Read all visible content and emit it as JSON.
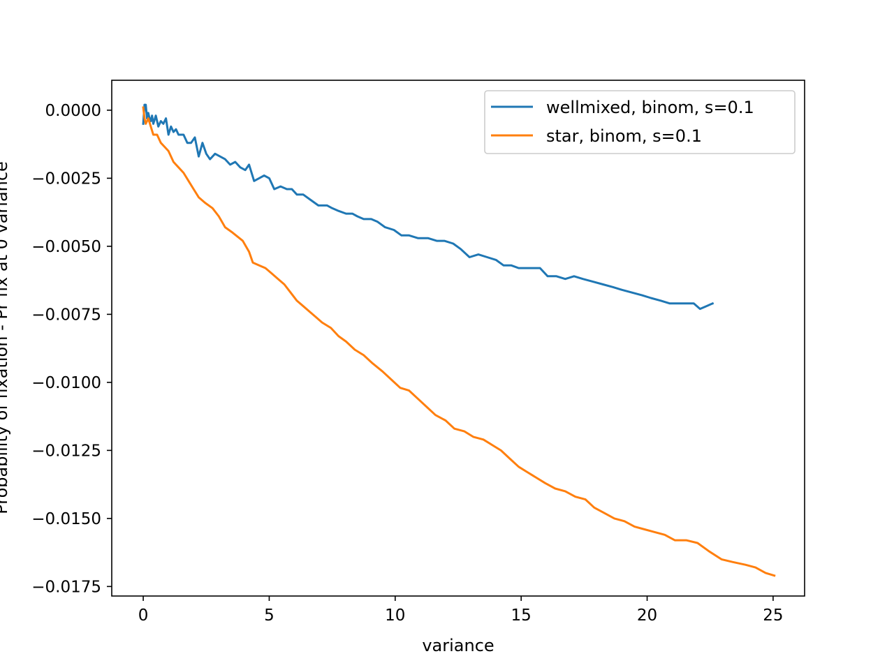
{
  "chart_data": {
    "type": "line",
    "title": "",
    "xlabel": "variance",
    "ylabel": "Probability of fixation - Pr fix at 0 variance",
    "xlim": [
      -1.25,
      26.25
    ],
    "ylim": [
      -0.01785,
      0.0011
    ],
    "xticks": [
      0,
      5,
      10,
      15,
      20,
      25
    ],
    "xtick_labels": [
      "0",
      "5",
      "10",
      "15",
      "20",
      "25"
    ],
    "yticks": [
      0.0,
      -0.0025,
      -0.005,
      -0.0075,
      -0.01,
      -0.0125,
      -0.015,
      -0.0175
    ],
    "ytick_labels": [
      "0.0000",
      "−0.0025",
      "−0.0050",
      "−0.0075",
      "−0.0100",
      "−0.0125",
      "−0.0150",
      "−0.0175"
    ],
    "grid": false,
    "legend_position": "top-right",
    "series": [
      {
        "name": "wellmixed, binom, s=0.1",
        "color": "#1f77b4",
        "x": [
          0.0,
          0.05,
          0.1,
          0.15,
          0.2,
          0.25,
          0.3,
          0.35,
          0.4,
          0.5,
          0.6,
          0.7,
          0.8,
          0.9,
          1.0,
          1.1,
          1.2,
          1.3,
          1.4,
          1.5,
          1.6,
          1.75,
          1.9,
          2.05,
          2.2,
          2.35,
          2.5,
          2.65,
          2.85,
          3.05,
          3.25,
          3.45,
          3.65,
          3.85,
          4.05,
          4.2,
          4.4,
          4.6,
          4.8,
          5.0,
          5.2,
          5.45,
          5.7,
          5.9,
          6.1,
          6.35,
          6.65,
          6.95,
          7.3,
          7.5,
          7.75,
          8.05,
          8.3,
          8.5,
          8.75,
          9.05,
          9.3,
          9.6,
          9.95,
          10.25,
          10.55,
          10.9,
          11.3,
          11.65,
          11.95,
          12.3,
          12.6,
          12.95,
          13.3,
          13.65,
          14.0,
          14.3,
          14.6,
          14.9,
          15.2,
          15.5,
          15.75,
          16.05,
          16.4,
          16.75,
          17.1,
          17.45,
          17.85,
          18.25,
          18.65,
          19.0,
          19.4,
          19.8,
          20.15,
          20.55,
          20.9,
          21.2,
          21.6,
          21.85,
          22.1,
          22.35,
          22.6
        ],
        "y": [
          -0.0005,
          0.0002,
          0.0002,
          -0.0003,
          -0.0001,
          -0.0003,
          -0.0004,
          -0.0002,
          -0.0005,
          -0.0002,
          -0.0006,
          -0.0004,
          -0.0005,
          -0.0003,
          -0.0009,
          -0.0006,
          -0.0008,
          -0.0007,
          -0.0009,
          -0.0009,
          -0.0009,
          -0.0012,
          -0.0012,
          -0.001,
          -0.0017,
          -0.0012,
          -0.0016,
          -0.0018,
          -0.0016,
          -0.0017,
          -0.0018,
          -0.002,
          -0.0019,
          -0.0021,
          -0.0022,
          -0.002,
          -0.0026,
          -0.0025,
          -0.0024,
          -0.0025,
          -0.0029,
          -0.0028,
          -0.0029,
          -0.0029,
          -0.0031,
          -0.0031,
          -0.0033,
          -0.0035,
          -0.0035,
          -0.0036,
          -0.0037,
          -0.0038,
          -0.0038,
          -0.0039,
          -0.004,
          -0.004,
          -0.0041,
          -0.0043,
          -0.0044,
          -0.0046,
          -0.0046,
          -0.0047,
          -0.0047,
          -0.0048,
          -0.0048,
          -0.0049,
          -0.0051,
          -0.0054,
          -0.0053,
          -0.0054,
          -0.0055,
          -0.0057,
          -0.0057,
          -0.0058,
          -0.0058,
          -0.0058,
          -0.0058,
          -0.0061,
          -0.0061,
          -0.0062,
          -0.0061,
          -0.0062,
          -0.0063,
          -0.0064,
          -0.0065,
          -0.0066,
          -0.0067,
          -0.0068,
          -0.0069,
          -0.007,
          -0.0071,
          -0.0071,
          -0.0071,
          -0.0071,
          -0.0073,
          -0.0072,
          -0.0071
        ]
      },
      {
        "name": "star, binom, s=0.1",
        "color": "#ff7f0e",
        "x": [
          0.0,
          0.05,
          0.1,
          0.15,
          0.2,
          0.3,
          0.4,
          0.55,
          0.7,
          0.9,
          1.0,
          1.2,
          1.4,
          1.6,
          1.8,
          2.0,
          2.2,
          2.45,
          2.75,
          3.0,
          3.25,
          3.55,
          3.95,
          4.2,
          4.35,
          4.6,
          4.85,
          5.1,
          5.35,
          5.6,
          5.85,
          6.1,
          6.35,
          6.6,
          6.85,
          7.1,
          7.45,
          7.75,
          8.05,
          8.4,
          8.75,
          9.1,
          9.5,
          9.85,
          10.2,
          10.55,
          10.9,
          11.25,
          11.6,
          12.0,
          12.35,
          12.75,
          13.1,
          13.5,
          13.85,
          14.2,
          14.55,
          14.9,
          15.25,
          15.6,
          15.95,
          16.35,
          16.75,
          17.15,
          17.55,
          17.9,
          18.3,
          18.7,
          19.1,
          19.5,
          19.9,
          20.3,
          20.7,
          21.1,
          21.55,
          22.0,
          22.45,
          22.95,
          23.4,
          23.9,
          24.3,
          24.7,
          25.05
        ],
        "y": [
          0.0001,
          -0.0003,
          -0.0005,
          -0.0004,
          -0.0003,
          -0.0006,
          -0.0009,
          -0.0009,
          -0.0012,
          -0.0014,
          -0.0015,
          -0.0019,
          -0.0021,
          -0.0023,
          -0.0026,
          -0.0029,
          -0.0032,
          -0.0034,
          -0.0036,
          -0.0039,
          -0.0043,
          -0.0045,
          -0.0048,
          -0.0052,
          -0.0056,
          -0.0057,
          -0.0058,
          -0.006,
          -0.0062,
          -0.0064,
          -0.0067,
          -0.007,
          -0.0072,
          -0.0074,
          -0.0076,
          -0.0078,
          -0.008,
          -0.0083,
          -0.0085,
          -0.0088,
          -0.009,
          -0.0093,
          -0.0096,
          -0.0099,
          -0.0102,
          -0.0103,
          -0.0106,
          -0.0109,
          -0.0112,
          -0.0114,
          -0.0117,
          -0.0118,
          -0.012,
          -0.0121,
          -0.0123,
          -0.0125,
          -0.0128,
          -0.0131,
          -0.0133,
          -0.0135,
          -0.0137,
          -0.0139,
          -0.014,
          -0.0142,
          -0.0143,
          -0.0146,
          -0.0148,
          -0.015,
          -0.0151,
          -0.0153,
          -0.0154,
          -0.0155,
          -0.0156,
          -0.0158,
          -0.0158,
          -0.0159,
          -0.0162,
          -0.0165,
          -0.0166,
          -0.0167,
          -0.0168,
          -0.017,
          -0.0171
        ]
      }
    ]
  }
}
